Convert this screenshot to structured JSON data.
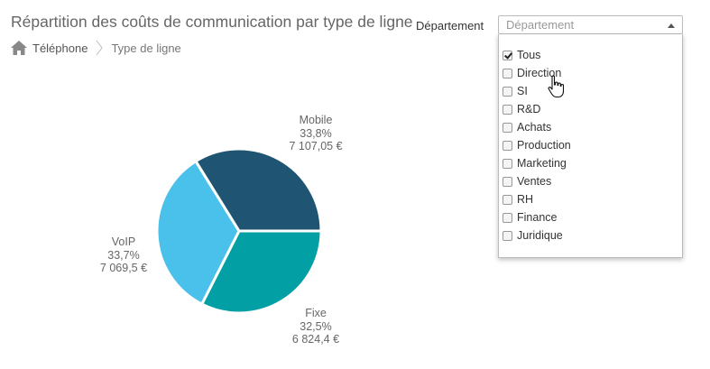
{
  "header": {
    "title": "Répartition des coûts de communication par type de ligne"
  },
  "breadcrumb": {
    "items": [
      "Téléphone",
      "Type de ligne"
    ]
  },
  "filter": {
    "label": "Département",
    "placeholder": "Département",
    "options": [
      {
        "label": "Tous",
        "checked": true
      },
      {
        "label": "Direction",
        "checked": false
      },
      {
        "label": "SI",
        "checked": false
      },
      {
        "label": "R&D",
        "checked": false
      },
      {
        "label": "Achats",
        "checked": false
      },
      {
        "label": "Production",
        "checked": false
      },
      {
        "label": "Marketing",
        "checked": false
      },
      {
        "label": "Ventes",
        "checked": false
      },
      {
        "label": "RH",
        "checked": false
      },
      {
        "label": "Finance",
        "checked": false
      },
      {
        "label": "Juridique",
        "checked": false
      }
    ]
  },
  "chart_data": {
    "type": "pie",
    "slices": [
      {
        "name": "Mobile",
        "percent_label": "33,8%",
        "value_label": "7 107,05 €",
        "value": 7107.05,
        "color": "#1f5573"
      },
      {
        "name": "Fixe",
        "percent_label": "32,5%",
        "value_label": "6 824,4 €",
        "value": 6824.4,
        "color": "#029fa4"
      },
      {
        "name": "VoIP",
        "percent_label": "33,7%",
        "value_label": "7 069,5 €",
        "value": 7069.5,
        "color": "#4ac1eb"
      }
    ]
  }
}
